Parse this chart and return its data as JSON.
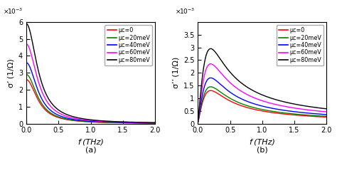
{
  "title_a": "(a)",
  "title_b": "(b)",
  "xlabel": "f (THz)",
  "ylabel_a": "σ’ (1/Ω)",
  "ylabel_b": "σ’’ (1/Ω)",
  "ylim_a": [
    0,
    0.006
  ],
  "ylim_b": [
    0,
    0.004
  ],
  "xlim": [
    0,
    2
  ],
  "colors": [
    "red",
    "green",
    "blue",
    "magenta",
    "black"
  ],
  "legend_labels": [
    "μc=0",
    "μc=20meV",
    "μc=40meV",
    "μc=60meV",
    "μc=80meV"
  ],
  "sigma_dc_values": [
    0.0026,
    0.0029,
    0.0036,
    0.0047,
    0.0059
  ],
  "tau": 0.8,
  "background": "#ffffff",
  "yticks_a": [
    0,
    0.001,
    0.002,
    0.003,
    0.004,
    0.005,
    0.006
  ],
  "yticks_b": [
    0,
    0.0005,
    0.001,
    0.0015,
    0.002,
    0.0025,
    0.003,
    0.0035
  ],
  "xticks": [
    0,
    0.5,
    1.0,
    1.5,
    2.0
  ]
}
